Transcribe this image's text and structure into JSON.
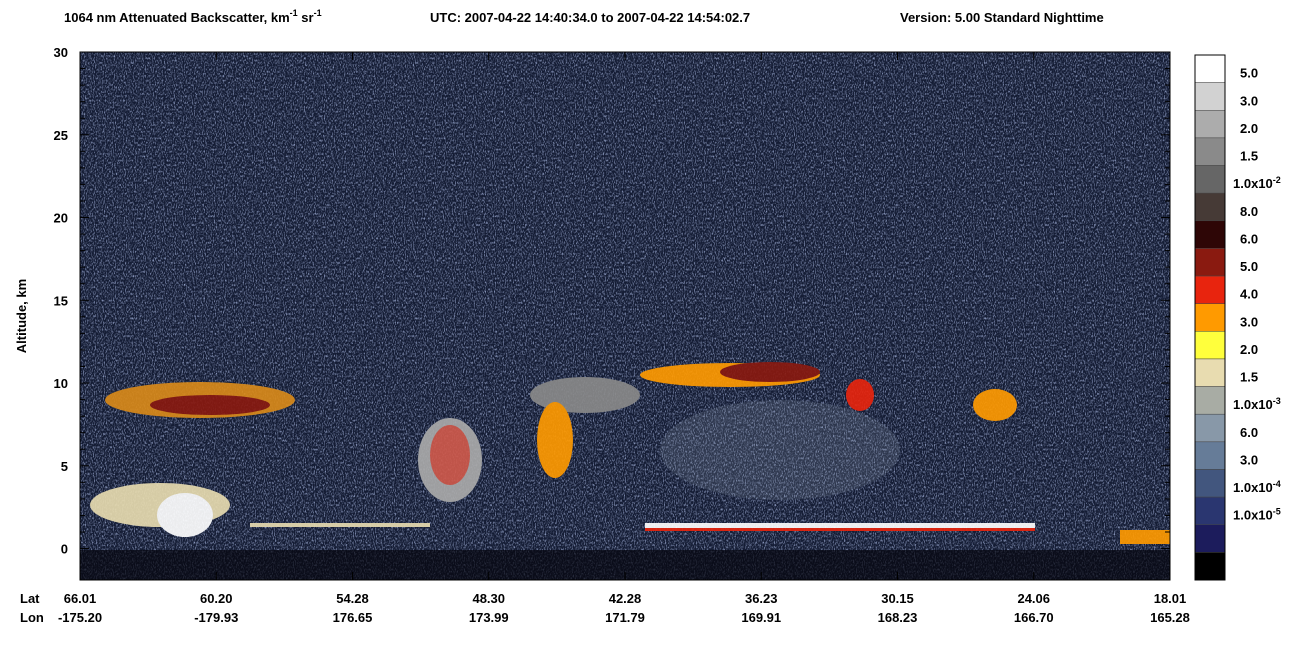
{
  "chart_data": {
    "type": "curtain",
    "title": {
      "main": "1064 nm Attenuated Backscatter, km",
      "sup1": "-1",
      "unit2": " sr",
      "sup2": "-1",
      "utc": "UTC:  2007-04-22 14:40:34.0  to  2007-04-22 14:54:02.7",
      "version": "Version: 5.00  Standard  Nighttime"
    },
    "y_label": "Altitude, km",
    "ylim": [
      -1.9,
      30
    ],
    "yticks": [
      0,
      5,
      10,
      15,
      20,
      25,
      30
    ],
    "x_row_labels": [
      "Lat",
      "Lon"
    ],
    "lat": [
      "66.01",
      "60.20",
      "54.28",
      "48.30",
      "42.28",
      "36.23",
      "30.15",
      "24.06",
      "18.01"
    ],
    "lon": [
      "-175.20",
      "-179.93",
      "176.65",
      "173.99",
      "171.79",
      "169.91",
      "168.23",
      "166.70",
      "165.28"
    ],
    "colorbar": {
      "colors": [
        "#ffffff",
        "#d2d2d2",
        "#acacac",
        "#8a8a8a",
        "#666666",
        "#463a36",
        "#2e0606",
        "#8a1a10",
        "#e8240e",
        "#ff9a00",
        "#ffff3c",
        "#e8dcb0",
        "#a8aca4",
        "#8898a8",
        "#667c98",
        "#42567e",
        "#2a3670",
        "#1c1c5c",
        "#000000"
      ],
      "labels": [
        "5.0",
        "3.0",
        "2.0",
        "1.5",
        {
          "base": "1.0x10",
          "exp": "-2"
        },
        "8.0",
        "6.0",
        "5.0",
        "4.0",
        "3.0",
        "2.0",
        "1.5",
        {
          "base": "1.0x10",
          "exp": "-3"
        },
        "6.0",
        "3.0",
        {
          "base": "1.0x10",
          "exp": "-4"
        },
        {
          "base": "1.0x10",
          "exp": "-5"
        }
      ]
    }
  }
}
